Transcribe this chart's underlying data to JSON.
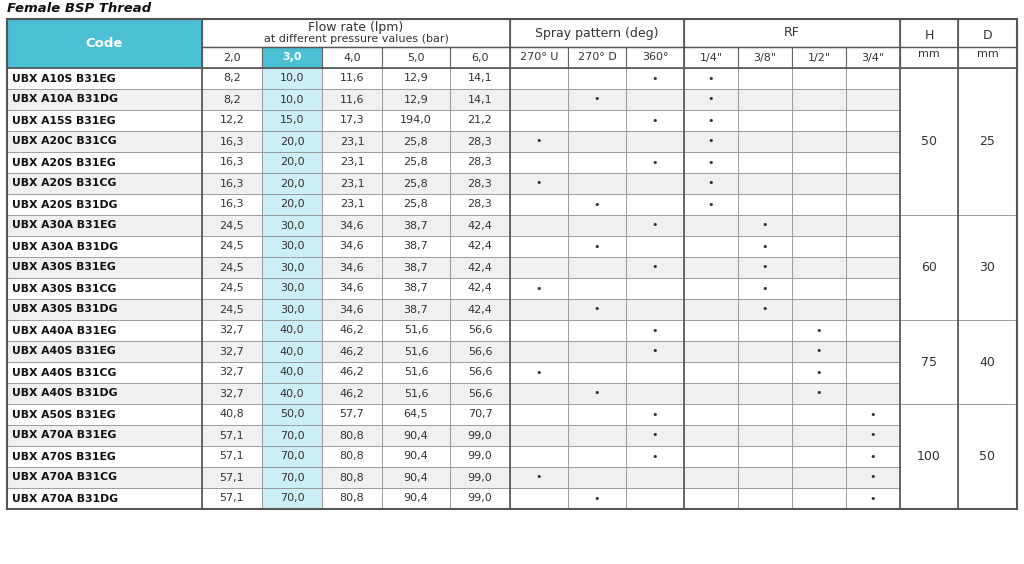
{
  "title": "Female BSP Thread",
  "code_header_bg": "#4bbfd4",
  "code_header_text": "#ffffff",
  "col3_header_bg": "#4bbfd4",
  "col3_header_text": "#ffffff",
  "col3_data_bg": "#cceef6",
  "group_header_bg": "#ffffff",
  "group_header_text": "#333333",
  "sub_header_bg": "#ffffff",
  "sub_header_text": "#333333",
  "row_even_bg": "#ffffff",
  "row_odd_bg": "#f0f0f0",
  "border_color": "#888888",
  "text_color": "#333333",
  "rows": [
    [
      "UBX A10S B31EG",
      "8,2",
      "10,0",
      "11,6",
      "12,9",
      "14,1",
      "",
      "",
      "•",
      "•",
      "",
      "",
      "",
      "",
      ""
    ],
    [
      "UBX A10A B31DG",
      "8,2",
      "10,0",
      "11,6",
      "12,9",
      "14,1",
      "",
      "•",
      "",
      "•",
      "",
      "",
      "",
      "",
      ""
    ],
    [
      "UBX A15S B31EG",
      "12,2",
      "15,0",
      "17,3",
      "194,0",
      "21,2",
      "",
      "",
      "•",
      "•",
      "",
      "",
      "",
      "",
      ""
    ],
    [
      "UBX A20C B31CG",
      "16,3",
      "20,0",
      "23,1",
      "25,8",
      "28,3",
      "•",
      "",
      "",
      "•",
      "",
      "",
      "",
      "",
      ""
    ],
    [
      "UBX A20S B31EG",
      "16,3",
      "20,0",
      "23,1",
      "25,8",
      "28,3",
      "",
      "",
      "•",
      "•",
      "",
      "",
      "",
      "",
      ""
    ],
    [
      "UBX A20S B31CG",
      "16,3",
      "20,0",
      "23,1",
      "25,8",
      "28,3",
      "•",
      "",
      "",
      "•",
      "",
      "",
      "",
      "",
      ""
    ],
    [
      "UBX A20S B31DG",
      "16,3",
      "20,0",
      "23,1",
      "25,8",
      "28,3",
      "",
      "•",
      "",
      "•",
      "",
      "",
      "",
      "",
      ""
    ],
    [
      "UBX A30A B31EG",
      "24,5",
      "30,0",
      "34,6",
      "38,7",
      "42,4",
      "",
      "",
      "•",
      "",
      "•",
      "",
      "",
      "",
      ""
    ],
    [
      "UBX A30A B31DG",
      "24,5",
      "30,0",
      "34,6",
      "38,7",
      "42,4",
      "",
      "•",
      "",
      "",
      "•",
      "",
      "",
      "",
      ""
    ],
    [
      "UBX A30S B31EG",
      "24,5",
      "30,0",
      "34,6",
      "38,7",
      "42,4",
      "",
      "",
      "•",
      "",
      "•",
      "",
      "",
      "",
      ""
    ],
    [
      "UBX A30S B31CG",
      "24,5",
      "30,0",
      "34,6",
      "38,7",
      "42,4",
      "•",
      "",
      "",
      "",
      "•",
      "",
      "",
      "",
      ""
    ],
    [
      "UBX A30S B31DG",
      "24,5",
      "30,0",
      "34,6",
      "38,7",
      "42,4",
      "",
      "•",
      "",
      "",
      "•",
      "",
      "",
      "",
      ""
    ],
    [
      "UBX A40A B31EG",
      "32,7",
      "40,0",
      "46,2",
      "51,6",
      "56,6",
      "",
      "",
      "•",
      "",
      "",
      "•",
      "",
      "",
      ""
    ],
    [
      "UBX A40S B31EG",
      "32,7",
      "40,0",
      "46,2",
      "51,6",
      "56,6",
      "",
      "",
      "•",
      "",
      "",
      "•",
      "",
      "",
      ""
    ],
    [
      "UBX A40S B31CG",
      "32,7",
      "40,0",
      "46,2",
      "51,6",
      "56,6",
      "•",
      "",
      "",
      "",
      "",
      "•",
      "",
      "",
      ""
    ],
    [
      "UBX A40S B31DG",
      "32,7",
      "40,0",
      "46,2",
      "51,6",
      "56,6",
      "",
      "•",
      "",
      "",
      "",
      "•",
      "",
      "",
      ""
    ],
    [
      "UBX A50S B31EG",
      "40,8",
      "50,0",
      "57,7",
      "64,5",
      "70,7",
      "",
      "",
      "•",
      "",
      "",
      "",
      "•",
      "",
      ""
    ],
    [
      "UBX A70A B31EG",
      "57,1",
      "70,0",
      "80,8",
      "90,4",
      "99,0",
      "",
      "",
      "•",
      "",
      "",
      "",
      "•",
      "",
      ""
    ],
    [
      "UBX A70S B31EG",
      "57,1",
      "70,0",
      "80,8",
      "90,4",
      "99,0",
      "",
      "",
      "•",
      "",
      "",
      "",
      "•",
      "",
      ""
    ],
    [
      "UBX A70A B31CG",
      "57,1",
      "70,0",
      "80,8",
      "90,4",
      "99,0",
      "•",
      "",
      "",
      "",
      "",
      "",
      "•",
      "",
      ""
    ],
    [
      "UBX A70A B31DG",
      "57,1",
      "70,0",
      "80,8",
      "90,4",
      "99,0",
      "",
      "•",
      "",
      "",
      "",
      "",
      "•",
      "",
      ""
    ]
  ],
  "merged_H": [
    {
      "rows": [
        0,
        6
      ],
      "value": "50"
    },
    {
      "rows": [
        7,
        11
      ],
      "value": "60"
    },
    {
      "rows": [
        12,
        15
      ],
      "value": "75"
    },
    {
      "rows": [
        16,
        20
      ],
      "value": "100"
    }
  ],
  "merged_D": [
    {
      "rows": [
        0,
        6
      ],
      "value": "25"
    },
    {
      "rows": [
        7,
        11
      ],
      "value": "30"
    },
    {
      "rows": [
        12,
        15
      ],
      "value": "40"
    },
    {
      "rows": [
        16,
        20
      ],
      "value": "50"
    }
  ]
}
